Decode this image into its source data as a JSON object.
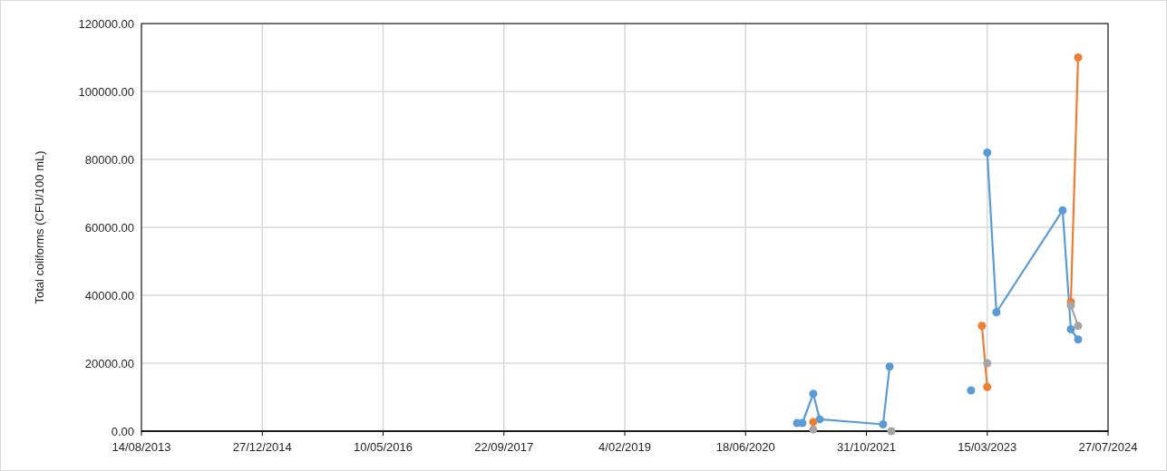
{
  "chart_data": {
    "type": "line",
    "ylabel": "Total coliforms (CFU/100 mL)",
    "x": [
      "2021-01-17",
      "2021-02-08",
      "2021-03-25",
      "2021-04-21",
      "2022-01-08",
      "2022-02-04",
      "2022-02-11",
      "2023-01-07",
      "2023-02-21",
      "2023-03-15",
      "2023-04-22",
      "2024-01-21",
      "2024-02-24",
      "2024-03-25"
    ],
    "series": [
      {
        "color": "#5b9bd5",
        "values": [
          2400,
          2400,
          11000,
          3500,
          2000,
          19000,
          null,
          12000,
          null,
          82000,
          35000,
          65000,
          30000,
          27000
        ]
      },
      {
        "color": "#ed7d31",
        "values": [
          null,
          null,
          2700,
          null,
          null,
          null,
          null,
          null,
          31000,
          13000,
          null,
          null,
          38000,
          110000
        ]
      },
      {
        "color": "#a5a5a5",
        "values": [
          null,
          null,
          500,
          null,
          null,
          null,
          0,
          null,
          null,
          20000,
          null,
          null,
          37000,
          31000
        ]
      }
    ],
    "xlim": [
      "2013-08-14",
      "2024-07-27"
    ],
    "xticks": [
      {
        "value": "2013-08-14",
        "label": "14/08/2013"
      },
      {
        "value": "2014-12-27",
        "label": "27/12/2014"
      },
      {
        "value": "2016-05-10",
        "label": "10/05/2016"
      },
      {
        "value": "2017-09-22",
        "label": "22/09/2017"
      },
      {
        "value": "2019-02-04",
        "label": "4/02/2019"
      },
      {
        "value": "2020-06-18",
        "label": "18/06/2020"
      },
      {
        "value": "2021-10-31",
        "label": "31/10/2021"
      },
      {
        "value": "2023-03-15",
        "label": "15/03/2023"
      },
      {
        "value": "2024-07-27",
        "label": "27/07/2024"
      }
    ],
    "ylim": [
      0,
      120000
    ],
    "yticks": [
      {
        "value": 0,
        "label": "0.00"
      },
      {
        "value": 20000,
        "label": "20000.00"
      },
      {
        "value": 40000,
        "label": "40000.00"
      },
      {
        "value": 60000,
        "label": "60000.00"
      },
      {
        "value": 80000,
        "label": "80000.00"
      },
      {
        "value": 100000,
        "label": "100000.00"
      },
      {
        "value": 120000,
        "label": "120000.00"
      }
    ],
    "grid": true,
    "marker": "circle",
    "line_style": "solid"
  }
}
